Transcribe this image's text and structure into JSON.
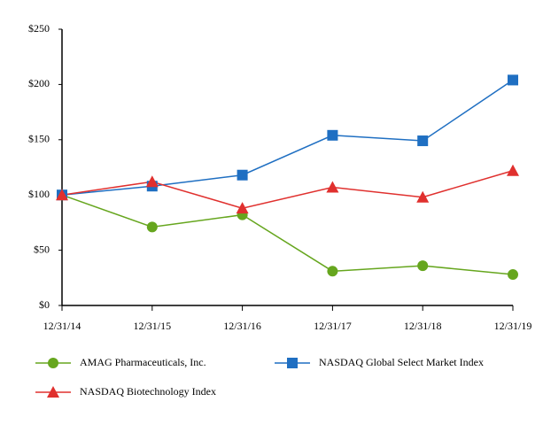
{
  "chart_data": {
    "type": "line",
    "categories": [
      "12/31/14",
      "12/31/15",
      "12/31/16",
      "12/31/17",
      "12/31/18",
      "12/31/19"
    ],
    "series": [
      {
        "name": "AMAG Pharmaceuticals, Inc.",
        "color": "#66a61e",
        "marker": "circle",
        "values": [
          100,
          71,
          82,
          31,
          36,
          28
        ]
      },
      {
        "name": "NASDAQ Global Select Market Index",
        "color": "#1f6fc2",
        "marker": "square",
        "values": [
          100,
          108,
          118,
          154,
          149,
          204
        ]
      },
      {
        "name": "NASDAQ Biotechnology Index",
        "color": "#e0302e",
        "marker": "triangle",
        "values": [
          100,
          112,
          88,
          107,
          98,
          122
        ]
      }
    ],
    "ylim": [
      0,
      250
    ],
    "yticks": [
      {
        "value": 0,
        "label": "$0"
      },
      {
        "value": 50,
        "label": "$50"
      },
      {
        "value": 100,
        "label": "$100"
      },
      {
        "value": 150,
        "label": "$150"
      },
      {
        "value": 200,
        "label": "$200"
      },
      {
        "value": 250,
        "label": "$250"
      }
    ],
    "grid": false,
    "legend": "bottom"
  }
}
